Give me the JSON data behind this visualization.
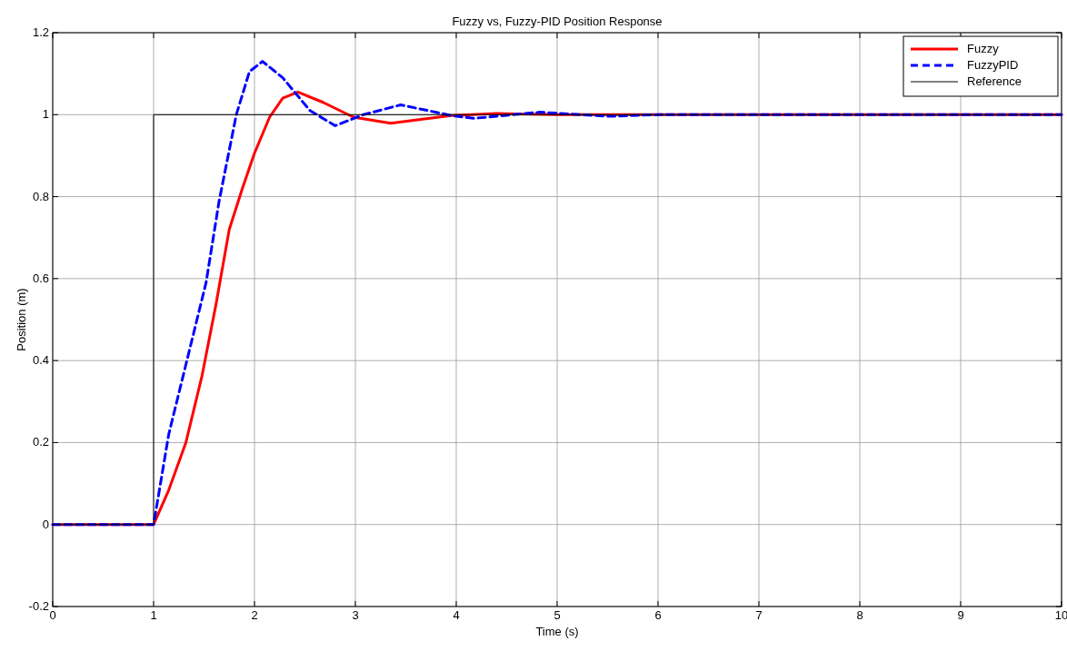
{
  "chart_data": {
    "type": "line",
    "title": "Fuzzy vs, Fuzzy-PID Position Response",
    "xlabel": "Time (s)",
    "ylabel": "Position (m)",
    "xlim": [
      0,
      10
    ],
    "ylim": [
      -0.2,
      1.2
    ],
    "xticks": [
      0,
      1,
      2,
      3,
      4,
      5,
      6,
      7,
      8,
      9,
      10
    ],
    "yticks": [
      -0.2,
      0,
      0.2,
      0.4,
      0.6,
      0.8,
      1,
      1.2
    ],
    "grid": true,
    "legend": "top right",
    "series": [
      {
        "name": "Fuzzy",
        "color": "#ff0000",
        "line_style": "solid",
        "x": [
          0,
          1,
          1.15,
          1.32,
          1.48,
          1.62,
          1.75,
          1.88,
          2.0,
          2.15,
          2.28,
          2.43,
          2.68,
          2.98,
          3.35,
          3.95,
          4.4,
          4.6,
          5,
          6,
          7,
          8,
          9,
          10
        ],
        "values": [
          0,
          0,
          0.084,
          0.2,
          0.363,
          0.539,
          0.72,
          0.82,
          0.906,
          0.994,
          1.04,
          1.055,
          1.03,
          0.994,
          0.979,
          0.998,
          1.003,
          1.002,
          1,
          1,
          1,
          1,
          1,
          1
        ]
      },
      {
        "name": "FuzzyPID",
        "color": "#0000ff",
        "line_style": "dashed",
        "x": [
          0,
          1,
          1.15,
          1.35,
          1.52,
          1.65,
          1.82,
          1.95,
          2.08,
          2.28,
          2.55,
          2.8,
          3.08,
          3.45,
          3.95,
          4.17,
          4.83,
          5.52,
          6,
          7,
          8,
          9,
          10
        ],
        "values": [
          0,
          0,
          0.22,
          0.42,
          0.59,
          0.79,
          1.0,
          1.105,
          1.13,
          1.09,
          1.01,
          0.973,
          1.0,
          1.024,
          0.998,
          0.991,
          1.006,
          0.996,
          1,
          1,
          1,
          1,
          1
        ]
      },
      {
        "name": "Reference",
        "color": "#000000",
        "line_style": "solid",
        "x": [
          0,
          1,
          1,
          10
        ],
        "values": [
          0,
          0,
          1,
          1
        ]
      }
    ]
  }
}
